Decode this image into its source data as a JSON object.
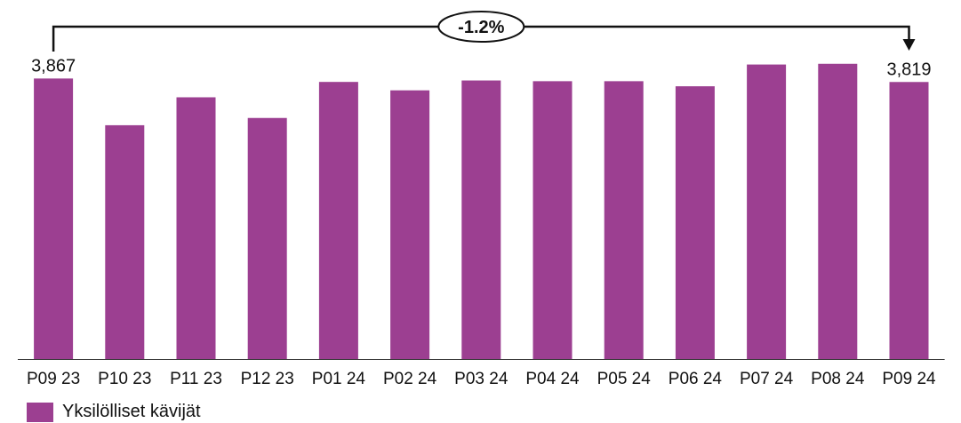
{
  "chart_data": {
    "type": "bar",
    "categories": [
      "P09 23",
      "P10 23",
      "P11 23",
      "P12 23",
      "P01 24",
      "P02 24",
      "P03 24",
      "P04 24",
      "P05 24",
      "P06 24",
      "P07 24",
      "P08 24",
      "P09 24"
    ],
    "series": [
      {
        "name": "Yksilölliset kävijät",
        "values": [
          3867,
          3223,
          3608,
          3323,
          3820,
          3704,
          3840,
          3830,
          3830,
          3760,
          4060,
          4070,
          3819
        ],
        "color": "#9c3f91"
      }
    ],
    "data_labels": [
      {
        "index": 0,
        "text": "3,867"
      },
      {
        "index": 12,
        "text": "3,819"
      }
    ],
    "change_annotation": {
      "from_index": 0,
      "to_index": 12,
      "text": "-1.2%"
    },
    "ylim": [
      0,
      4300
    ],
    "grid": false,
    "legend_position": "bottom-left"
  }
}
